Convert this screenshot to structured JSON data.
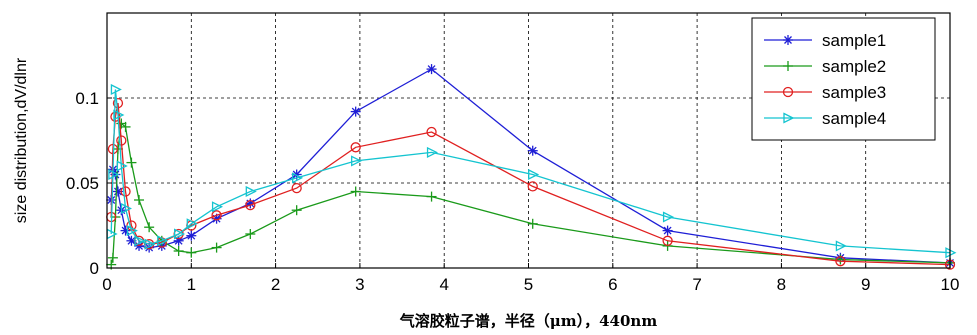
{
  "chart_data": {
    "type": "line",
    "title": "",
    "xlabel": "气溶胶粒子谱，半径（μm），440nm",
    "ylabel": "size distribution,dV/dlnr",
    "xlim": [
      0,
      10
    ],
    "ylim": [
      0,
      0.15
    ],
    "xticks": [
      0,
      1,
      2,
      3,
      4,
      5,
      6,
      7,
      8,
      9,
      10
    ],
    "yticks": [
      0,
      0.05,
      0.1
    ],
    "ytick_labels": [
      "0",
      "0.05",
      "0.1"
    ],
    "grid": "dashed",
    "legend": "top-right",
    "series": [
      {
        "name": "sample1",
        "color": "#1f1fd6",
        "marker": "star",
        "x": [
          0.05,
          0.07,
          0.1,
          0.13,
          0.17,
          0.22,
          0.29,
          0.38,
          0.5,
          0.65,
          0.85,
          1.0,
          1.3,
          1.7,
          2.25,
          2.95,
          3.85,
          5.05,
          6.65,
          8.7,
          10.0
        ],
        "y": [
          0.04,
          0.058,
          0.055,
          0.045,
          0.034,
          0.022,
          0.016,
          0.013,
          0.012,
          0.013,
          0.016,
          0.019,
          0.029,
          0.038,
          0.055,
          0.092,
          0.117,
          0.069,
          0.022,
          0.006,
          0.003
        ]
      },
      {
        "name": "sample2",
        "color": "#1a9a1a",
        "marker": "plus",
        "x": [
          0.05,
          0.07,
          0.1,
          0.13,
          0.17,
          0.22,
          0.29,
          0.38,
          0.5,
          0.65,
          0.85,
          1.0,
          1.3,
          1.7,
          2.25,
          2.95,
          3.85,
          5.05,
          6.65,
          8.7,
          10.0
        ],
        "y": [
          0.002,
          0.006,
          0.03,
          0.07,
          0.085,
          0.083,
          0.062,
          0.04,
          0.024,
          0.016,
          0.01,
          0.009,
          0.012,
          0.02,
          0.034,
          0.045,
          0.042,
          0.026,
          0.013,
          0.005,
          0.003
        ]
      },
      {
        "name": "sample3",
        "color": "#e02020",
        "marker": "circle",
        "x": [
          0.05,
          0.07,
          0.1,
          0.13,
          0.17,
          0.22,
          0.29,
          0.38,
          0.5,
          0.65,
          0.85,
          1.0,
          1.3,
          1.7,
          2.25,
          2.95,
          3.85,
          5.05,
          6.65,
          8.7,
          10.0
        ],
        "y": [
          0.03,
          0.07,
          0.089,
          0.097,
          0.075,
          0.045,
          0.025,
          0.016,
          0.014,
          0.015,
          0.02,
          0.025,
          0.031,
          0.037,
          0.047,
          0.071,
          0.08,
          0.048,
          0.016,
          0.004,
          0.002
        ]
      },
      {
        "name": "sample4",
        "color": "#14c4d0",
        "marker": "triangle-right",
        "x": [
          0.05,
          0.07,
          0.1,
          0.13,
          0.17,
          0.22,
          0.29,
          0.38,
          0.5,
          0.65,
          0.85,
          1.0,
          1.3,
          1.7,
          2.25,
          2.95,
          3.85,
          5.05,
          6.65,
          8.7,
          10.0
        ],
        "y": [
          0.02,
          0.055,
          0.105,
          0.09,
          0.06,
          0.035,
          0.022,
          0.016,
          0.014,
          0.016,
          0.02,
          0.026,
          0.036,
          0.045,
          0.053,
          0.063,
          0.068,
          0.055,
          0.03,
          0.013,
          0.009
        ]
      }
    ]
  }
}
